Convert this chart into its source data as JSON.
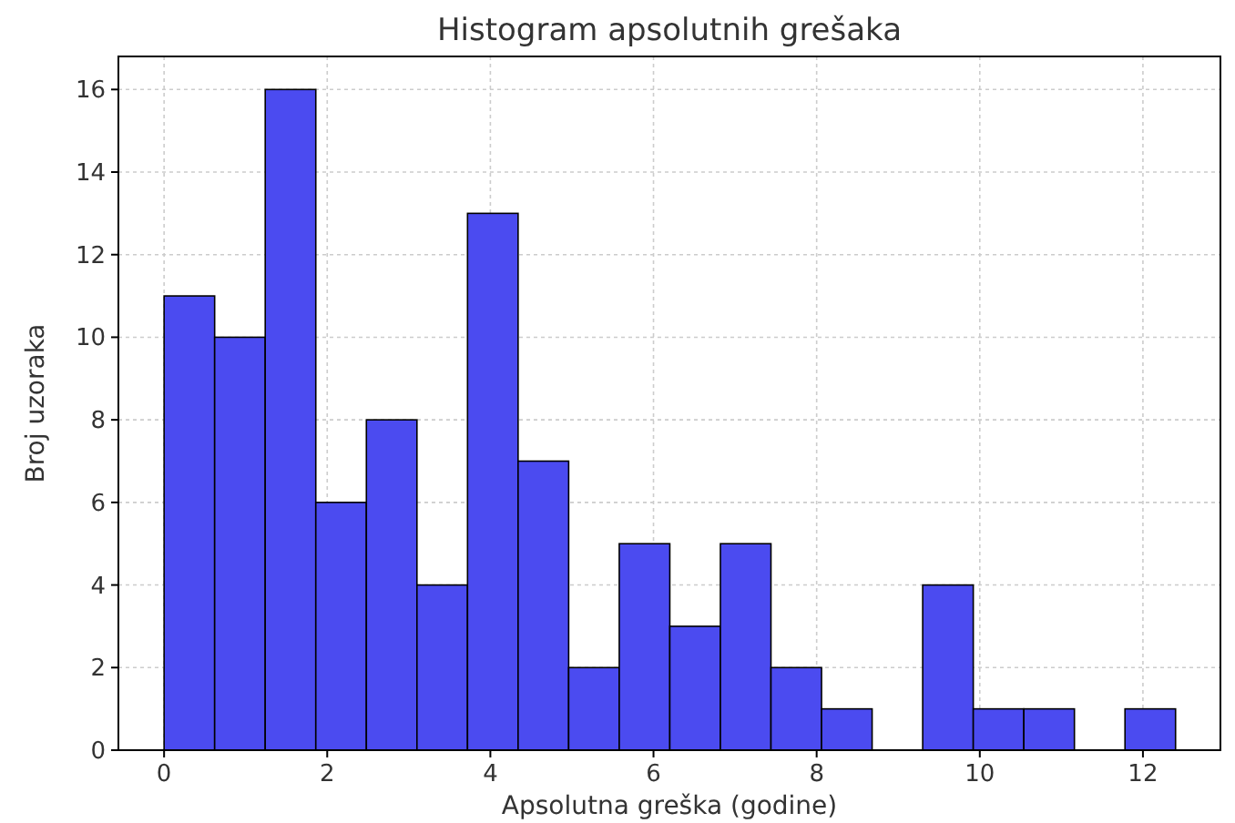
{
  "chart_data": {
    "type": "histogram",
    "title": "Histogram apsolutnih grešaka",
    "xlabel": "Apsolutna greška (godine)",
    "ylabel": "Broj uzoraka",
    "bins": [
      0,
      0.62,
      1.24,
      1.86,
      2.48,
      3.1,
      3.72,
      4.34,
      4.96,
      5.58,
      6.2,
      6.82,
      7.44,
      8.06,
      8.68,
      9.3,
      9.92,
      10.54,
      11.16,
      11.78,
      12.4
    ],
    "values": [
      11,
      10,
      16,
      6,
      8,
      4,
      13,
      7,
      2,
      5,
      3,
      5,
      2,
      1,
      0,
      4,
      1,
      1,
      0,
      1
    ],
    "color": "#4b4bf0",
    "xlim": [
      -0.56,
      12.95
    ],
    "xticks": [
      0,
      2,
      4,
      6,
      8,
      10,
      12
    ],
    "ylim": [
      0,
      16.8
    ],
    "yticks": [
      0,
      2,
      4,
      6,
      8,
      10,
      12,
      14,
      16
    ],
    "grid": true
  }
}
